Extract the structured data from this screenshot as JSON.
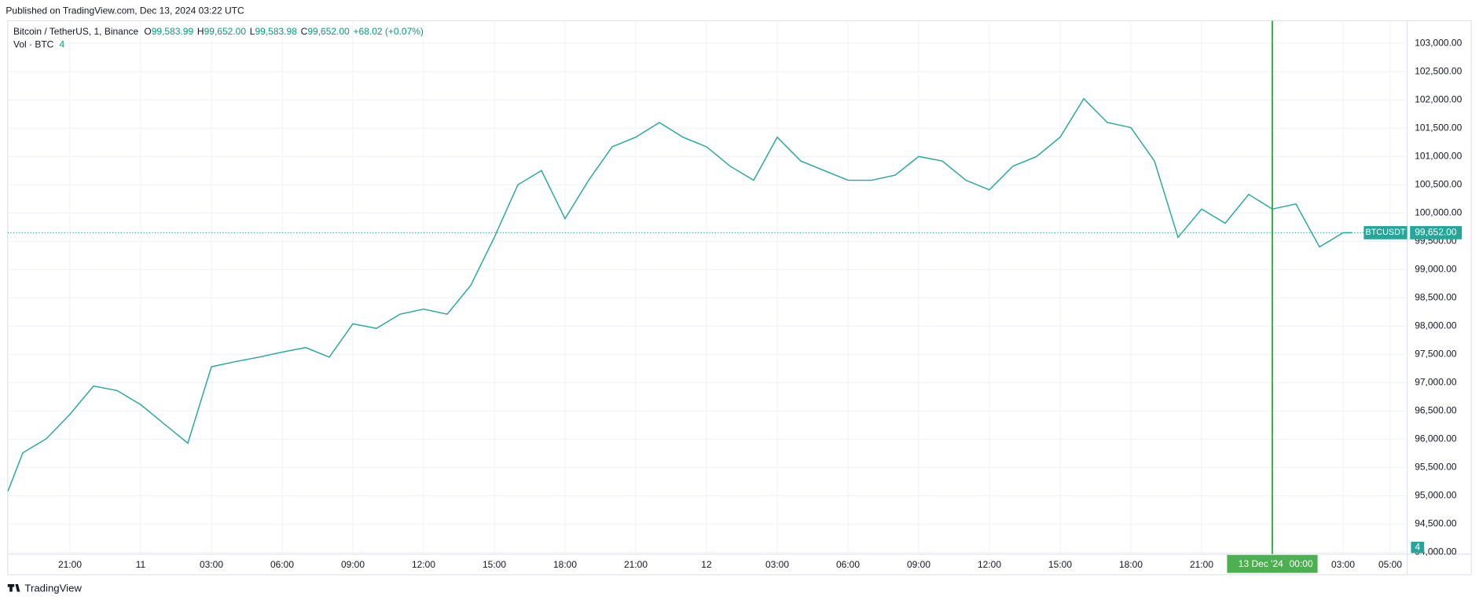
{
  "header": {
    "published": "Published on TradingView.com, Dec 13, 2024 03:22 UTC"
  },
  "legend": {
    "symbol": "Bitcoin / TetherUS, 1, Binance",
    "o": "O",
    "open": "99,583.99",
    "h": "H",
    "high": "99,652.00",
    "l": "L",
    "low": "99,583.98",
    "c": "C",
    "close": "99,652.00",
    "change": "+68.02 (+0.07%)",
    "vol": "Vol · BTC",
    "vol_value": "4",
    "vol_axis_label": "4"
  },
  "footer": {
    "brand": "TradingView"
  },
  "chart_data": {
    "type": "line",
    "x": [
      "10 Dec '24 18:22",
      "10 Dec '24 19:00",
      "10 Dec '24 20:00",
      "10 Dec '24 21:00",
      "10 Dec '24 22:00",
      "10 Dec '24 23:00",
      "11 Dec '24 00:00",
      "11 Dec '24 01:00",
      "11 Dec '24 02:00",
      "11 Dec '24 03:00",
      "11 Dec '24 04:00",
      "11 Dec '24 05:00",
      "11 Dec '24 06:00",
      "11 Dec '24 07:00",
      "11 Dec '24 08:00",
      "11 Dec '24 09:00",
      "11 Dec '24 10:00",
      "11 Dec '24 11:00",
      "11 Dec '24 12:00",
      "11 Dec '24 13:00",
      "11 Dec '24 14:00",
      "11 Dec '24 15:00",
      "11 Dec '24 16:00",
      "11 Dec '24 17:00",
      "11 Dec '24 18:00",
      "11 Dec '24 19:00",
      "11 Dec '24 20:00",
      "11 Dec '24 21:00",
      "11 Dec '24 22:00",
      "11 Dec '24 23:00",
      "12 Dec '24 00:00",
      "12 Dec '24 01:00",
      "12 Dec '24 02:00",
      "12 Dec '24 03:00",
      "12 Dec '24 04:00",
      "12 Dec '24 05:00",
      "12 Dec '24 06:00",
      "12 Dec '24 07:00",
      "12 Dec '24 08:00",
      "12 Dec '24 09:00",
      "12 Dec '24 10:00",
      "12 Dec '24 11:00",
      "12 Dec '24 12:00",
      "12 Dec '24 13:00",
      "12 Dec '24 14:00",
      "12 Dec '24 15:00",
      "12 Dec '24 16:00",
      "12 Dec '24 17:00",
      "12 Dec '24 18:00",
      "12 Dec '24 19:00",
      "12 Dec '24 20:00",
      "12 Dec '24 21:00",
      "12 Dec '24 22:00",
      "12 Dec '24 23:00",
      "13 Dec '24 00:00",
      "13 Dec '24 01:00",
      "13 Dec '24 02:00",
      "13 Dec '24 03:00",
      "13 Dec '24 03:22"
    ],
    "series": [
      {
        "name": "BTCUSDT",
        "color": "#26a69a",
        "values": [
          95080,
          95760,
          96010,
          96440,
          96940,
          96860,
          96610,
          96270,
          95930,
          97280,
          97370,
          97450,
          97540,
          97620,
          97450,
          98040,
          97960,
          98210,
          98300,
          98210,
          98720,
          99570,
          100500,
          100750,
          99900,
          100580,
          101170,
          101340,
          101600,
          101340,
          101170,
          100830,
          100580,
          101340,
          100920,
          100750,
          100580,
          100580,
          100670,
          101000,
          100920,
          100580,
          100410,
          100830,
          101000,
          101340,
          102020,
          101600,
          101510,
          100920,
          99570,
          100070,
          99820,
          100330,
          100070,
          100160,
          99400,
          99650,
          99652
        ]
      }
    ],
    "last_price": {
      "value": 99652,
      "label": "99,652.00"
    },
    "crosshair": {
      "date_label": "13 Dec '24",
      "time_label": "00:00"
    },
    "ylim": [
      93970,
      103400
    ],
    "yticks": [
      {
        "value": 94000,
        "label": "94,000.00"
      },
      {
        "value": 94500,
        "label": "94,500.00"
      },
      {
        "value": 95000,
        "label": "95,000.00"
      },
      {
        "value": 95500,
        "label": "95,500.00"
      },
      {
        "value": 96000,
        "label": "96,000.00"
      },
      {
        "value": 96500,
        "label": "96,500.00"
      },
      {
        "value": 97000,
        "label": "97,000.00"
      },
      {
        "value": 97500,
        "label": "97,500.00"
      },
      {
        "value": 98000,
        "label": "98,000.00"
      },
      {
        "value": 98500,
        "label": "98,500.00"
      },
      {
        "value": 99000,
        "label": "99,000.00"
      },
      {
        "value": 99500,
        "label": "99,500.00"
      },
      {
        "value": 100000,
        "label": "100,000.00"
      },
      {
        "value": 100500,
        "label": "100,500.00"
      },
      {
        "value": 101000,
        "label": "101,000.00"
      },
      {
        "value": 101500,
        "label": "101,500.00"
      },
      {
        "value": 102000,
        "label": "102,000.00"
      },
      {
        "value": 102500,
        "label": "102,500.00"
      },
      {
        "value": 103000,
        "label": "103,000.00"
      }
    ],
    "xticks": [
      {
        "value": "10 Dec '24 21:00",
        "label": "21:00"
      },
      {
        "value": "11 Dec '24 00:00",
        "label": "11"
      },
      {
        "value": "11 Dec '24 03:00",
        "label": "03:00"
      },
      {
        "value": "11 Dec '24 06:00",
        "label": "06:00"
      },
      {
        "value": "11 Dec '24 09:00",
        "label": "09:00"
      },
      {
        "value": "11 Dec '24 12:00",
        "label": "12:00"
      },
      {
        "value": "11 Dec '24 15:00",
        "label": "15:00"
      },
      {
        "value": "11 Dec '24 18:00",
        "label": "18:00"
      },
      {
        "value": "11 Dec '24 21:00",
        "label": "21:00"
      },
      {
        "value": "12 Dec '24 00:00",
        "label": "12"
      },
      {
        "value": "12 Dec '24 03:00",
        "label": "03:00"
      },
      {
        "value": "12 Dec '24 06:00",
        "label": "06:00"
      },
      {
        "value": "12 Dec '24 09:00",
        "label": "09:00"
      },
      {
        "value": "12 Dec '24 12:00",
        "label": "12:00"
      },
      {
        "value": "12 Dec '24 15:00",
        "label": "15:00"
      },
      {
        "value": "12 Dec '24 18:00",
        "label": "18:00"
      },
      {
        "value": "12 Dec '24 21:00",
        "label": "21:00"
      },
      {
        "value": "13 Dec '24 03:00",
        "label": "03:00"
      },
      {
        "value": "13 Dec '24 05:00",
        "label": "05:00"
      }
    ],
    "grid": true
  }
}
